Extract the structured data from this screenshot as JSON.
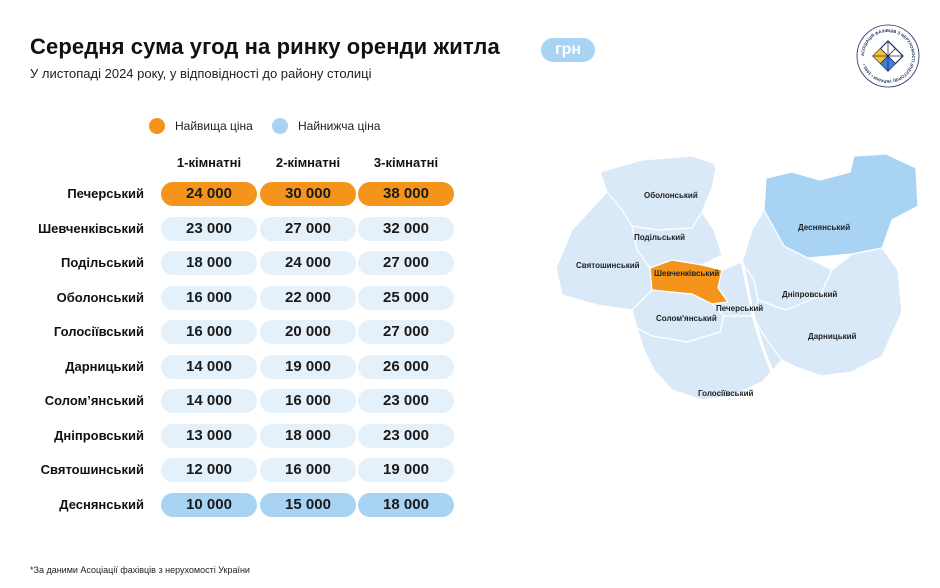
{
  "header": {
    "title": "Середня сума угод на ринку оренди житла",
    "unit_badge": "грн",
    "subtitle": "У листопаді 2024 року, у відповідності до району столиці"
  },
  "logo": {
    "text": "АСОЦІАЦІЯ ФАХІВЦІВ З НЕРУХОМОСТІ (РІЕЛТОРІВ) УКРАЇНИ • 1995 •",
    "colors": [
      "#f4c430",
      "#3f7fd9"
    ]
  },
  "legend": {
    "highest": {
      "label": "Найвища ціна",
      "color": "#f4941a"
    },
    "lowest": {
      "label": "Найнижча ціна",
      "color": "#a8d3f3"
    }
  },
  "chart_data": {
    "type": "table",
    "columns": [
      "1-кімнатні",
      "2-кімнатні",
      "3-кімнатні"
    ],
    "rows": [
      {
        "district": "Печерський",
        "values": [
          "24 000",
          "30 000",
          "38 000"
        ],
        "highlight": "highest"
      },
      {
        "district": "Шевченківський",
        "values": [
          "23 000",
          "27 000",
          "32 000"
        ],
        "highlight": "none"
      },
      {
        "district": "Подільський",
        "values": [
          "18 000",
          "24 000",
          "27 000"
        ],
        "highlight": "none"
      },
      {
        "district": "Оболонський",
        "values": [
          "16 000",
          "22 000",
          "25 000"
        ],
        "highlight": "none"
      },
      {
        "district": "Голосіївський",
        "values": [
          "16 000",
          "20 000",
          "27 000"
        ],
        "highlight": "none"
      },
      {
        "district": "Дарницький",
        "values": [
          "14 000",
          "19 000",
          "26 000"
        ],
        "highlight": "none"
      },
      {
        "district": "Солом’янський",
        "values": [
          "14 000",
          "16 000",
          "23 000"
        ],
        "highlight": "none"
      },
      {
        "district": "Дніпровський",
        "values": [
          "13 000",
          "18 000",
          "23 000"
        ],
        "highlight": "none"
      },
      {
        "district": "Святошинський",
        "values": [
          "12 000",
          "16 000",
          "19 000"
        ],
        "highlight": "none"
      },
      {
        "district": "Деснянський",
        "values": [
          "10 000",
          "15 000",
          "18 000"
        ],
        "highlight": "lowest"
      }
    ]
  },
  "map": {
    "labels": {
      "obolonskyi": "Оболонський",
      "podilskyi": "Подільський",
      "desnianskyi": "Деснянський",
      "sviatoshynskyi": "Святошинський",
      "shevchenkivskyi": "Шевченківський",
      "dniprovskyi": "Дніпровський",
      "pecherskyi": "Печерський",
      "solomianskyi": "Солом'янський",
      "darnytskyi": "Дарницький",
      "holosiivskyi": "Голосіївський"
    },
    "colors": {
      "base": "#d9e9f8",
      "highest": "#f4941a",
      "lowest": "#a8d3f3",
      "border": "#ffffff"
    }
  },
  "footnote": "*За даними Асоціації фахівців з нерухомості України"
}
